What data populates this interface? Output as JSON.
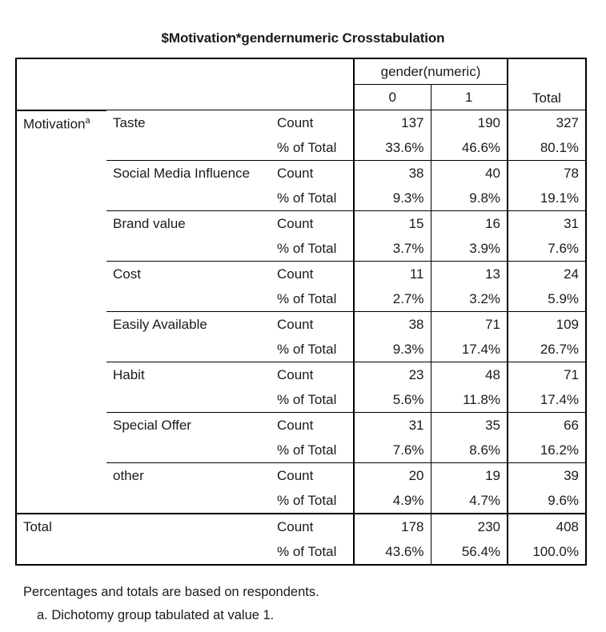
{
  "title": "$Motivation*gendernumeric Crosstabulation",
  "header": {
    "group_label": "gender(numeric)",
    "col0": "0",
    "col1": "1",
    "total": "Total"
  },
  "row_group_label": "Motivation",
  "row_group_superscript": "a",
  "stat_labels": {
    "count": "Count",
    "pct": "% of Total"
  },
  "rows": [
    {
      "label": "Taste",
      "count": [
        "137",
        "190",
        "327"
      ],
      "pct": [
        "33.6%",
        "46.6%",
        "80.1%"
      ]
    },
    {
      "label": "Social Media Influence",
      "count": [
        "38",
        "40",
        "78"
      ],
      "pct": [
        "9.3%",
        "9.8%",
        "19.1%"
      ]
    },
    {
      "label": "Brand value",
      "count": [
        "15",
        "16",
        "31"
      ],
      "pct": [
        "3.7%",
        "3.9%",
        "7.6%"
      ]
    },
    {
      "label": "Cost",
      "count": [
        "11",
        "13",
        "24"
      ],
      "pct": [
        "2.7%",
        "3.2%",
        "5.9%"
      ]
    },
    {
      "label": "Easily Available",
      "count": [
        "38",
        "71",
        "109"
      ],
      "pct": [
        "9.3%",
        "17.4%",
        "26.7%"
      ]
    },
    {
      "label": "Habit",
      "count": [
        "23",
        "48",
        "71"
      ],
      "pct": [
        "5.6%",
        "11.8%",
        "17.4%"
      ]
    },
    {
      "label": "Special Offer",
      "count": [
        "31",
        "35",
        "66"
      ],
      "pct": [
        "7.6%",
        "8.6%",
        "16.2%"
      ]
    },
    {
      "label": "other",
      "count": [
        "20",
        "19",
        "39"
      ],
      "pct": [
        "4.9%",
        "4.7%",
        "9.6%"
      ]
    }
  ],
  "total_row": {
    "label": "Total",
    "count": [
      "178",
      "230",
      "408"
    ],
    "pct": [
      "43.6%",
      "56.4%",
      "100.0%"
    ]
  },
  "footnotes": {
    "note1": "Percentages and totals are based on respondents.",
    "note2": "a. Dichotomy group tabulated at value 1."
  }
}
